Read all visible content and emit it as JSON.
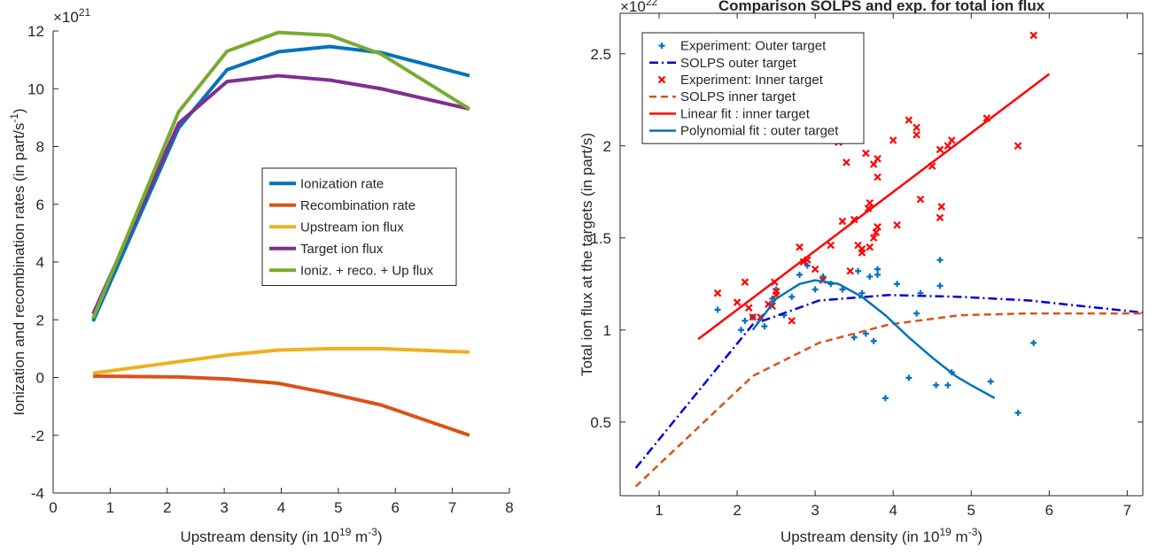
{
  "chart_data": [
    {
      "type": "line",
      "y_multiplier": [
        "×10",
        "21"
      ],
      "ylabel": [
        "Ionization and recombination rates (in part/s",
        "-1",
        ")"
      ],
      "xlabel": [
        "Upstream density (in 10",
        "19",
        " m",
        "-3",
        ")"
      ],
      "x": [
        0.7,
        2.2,
        3.05,
        3.95,
        4.85,
        5.75,
        7.3
      ],
      "series": [
        {
          "name": "Ionization rate",
          "color": "#0072bd",
          "values": [
            1.95,
            8.64,
            10.66,
            11.28,
            11.46,
            11.25,
            10.45
          ]
        },
        {
          "name": "Recombination rate",
          "color": "#d95319",
          "values": [
            0.05,
            0.02,
            -0.05,
            -0.2,
            -0.55,
            -0.95,
            -2.0
          ]
        },
        {
          "name": "Upstream ion flux",
          "color": "#edb120",
          "values": [
            0.15,
            0.55,
            0.78,
            0.95,
            1.0,
            1.0,
            0.88
          ]
        },
        {
          "name": "Target ion flux",
          "color": "#7e2f8e",
          "values": [
            2.2,
            8.8,
            10.25,
            10.45,
            10.3,
            10.0,
            9.3
          ]
        },
        {
          "name": "Ioniz. + reco. + Up flux",
          "color": "#77ac30",
          "values": [
            2.05,
            9.2,
            11.3,
            11.95,
            11.85,
            11.2,
            9.3
          ]
        }
      ],
      "xlim": [
        0,
        8
      ],
      "xticks": [
        0,
        1,
        2,
        3,
        4,
        5,
        6,
        7,
        8
      ],
      "ylim": [
        -4,
        12
      ],
      "yticks": [
        -4,
        -2,
        0,
        2,
        4,
        6,
        8,
        10,
        12
      ],
      "legend": "center",
      "box": false
    },
    {
      "type": "line",
      "title": "Comparison SOLPS and exp. for total ion flux",
      "y_multiplier": [
        "×10",
        "22"
      ],
      "ylabel": [
        "Total ion flux at the targets (in part/s)"
      ],
      "xlabel": [
        "Upstream density (in 10",
        "19",
        " m",
        "-3",
        ")"
      ],
      "series": [
        {
          "name": "Experiment: Outer target",
          "color": "#0072bd",
          "marker": "+",
          "x": [
            1.75,
            2.1,
            2.2,
            2.35,
            2.45,
            2.5,
            2.7,
            2.8,
            2.9,
            3.0,
            3.1,
            3.2,
            3.35,
            3.5,
            3.55,
            3.6,
            3.65,
            3.7,
            3.75,
            3.8,
            3.8,
            3.9,
            4.05,
            4.2,
            4.3,
            4.35,
            4.55,
            4.6,
            4.6,
            4.7,
            4.75,
            5.25,
            5.6,
            5.8,
            2.05,
            2.6
          ],
          "values": [
            1.11,
            1.05,
            1.07,
            1.02,
            1.17,
            1.22,
            1.18,
            1.3,
            1.35,
            1.22,
            1.29,
            1.25,
            1.22,
            0.96,
            1.32,
            1.2,
            0.98,
            1.29,
            0.94,
            1.33,
            1.3,
            0.63,
            1.25,
            0.74,
            1.09,
            1.2,
            0.7,
            1.38,
            1.24,
            0.7,
            0.77,
            0.72,
            0.55,
            0.93,
            1.0,
            1.08
          ]
        },
        {
          "name": "SOLPS outer target",
          "color": "#0000dd",
          "dash": "dashdot",
          "x": [
            0.7,
            2.2,
            3.05,
            3.95,
            4.85,
            5.75,
            7.3
          ],
          "values": [
            0.25,
            1.03,
            1.16,
            1.19,
            1.18,
            1.16,
            1.09
          ]
        },
        {
          "name": "Experiment: Inner target",
          "color": "#ff0000",
          "marker": "x",
          "x": [
            1.75,
            2.0,
            2.1,
            2.15,
            2.2,
            2.3,
            2.4,
            2.45,
            2.5,
            2.48,
            2.5,
            2.7,
            2.8,
            2.85,
            2.9,
            3.0,
            3.1,
            3.2,
            3.35,
            3.4,
            3.45,
            3.5,
            3.55,
            3.6,
            3.65,
            3.7,
            3.68,
            3.75,
            3.75,
            3.8,
            3.8,
            3.78,
            3.7,
            3.6,
            4.0,
            4.05,
            4.2,
            4.3,
            4.3,
            4.35,
            4.5,
            4.6,
            4.62,
            4.6,
            4.7,
            4.75,
            5.2,
            5.6,
            5.8,
            3.3,
            3.8
          ],
          "values": [
            1.2,
            1.15,
            1.26,
            1.12,
            1.07,
            1.07,
            1.14,
            1.13,
            1.21,
            1.26,
            1.19,
            1.05,
            1.45,
            1.37,
            1.38,
            1.33,
            1.27,
            1.46,
            1.59,
            1.91,
            1.32,
            1.6,
            1.46,
            1.44,
            1.96,
            1.69,
            1.66,
            1.5,
            1.9,
            1.93,
            1.56,
            1.53,
            1.45,
            1.42,
            2.03,
            1.57,
            2.14,
            2.1,
            2.06,
            1.71,
            1.89,
            1.98,
            1.67,
            1.61,
            2.0,
            2.03,
            2.15,
            2.0,
            2.6,
            2.02,
            1.83
          ]
        },
        {
          "name": "SOLPS inner target",
          "color": "#d95319",
          "dash": "dash",
          "x": [
            0.7,
            2.2,
            3.05,
            3.95,
            4.85,
            5.75,
            7.3
          ],
          "values": [
            0.15,
            0.75,
            0.93,
            1.03,
            1.08,
            1.09,
            1.09
          ]
        },
        {
          "name": "Linear fit : inner target",
          "color": "#ff0000",
          "x": [
            1.5,
            6
          ],
          "values": [
            0.95,
            2.39
          ]
        },
        {
          "name": "Polynomial fit : outer target",
          "color": "#0072bd",
          "x": [
            2.2,
            2.5,
            2.8,
            3.0,
            3.3,
            3.6,
            3.9,
            4.2,
            4.5,
            4.8,
            5.0,
            5.3
          ],
          "values": [
            1.0,
            1.17,
            1.25,
            1.27,
            1.25,
            1.18,
            1.08,
            0.96,
            0.85,
            0.75,
            0.7,
            0.63
          ]
        }
      ],
      "xlim": [
        0.5,
        7.2
      ],
      "xticks": [
        1,
        2,
        3,
        4,
        5,
        6,
        7
      ],
      "ylim": [
        0.1,
        2.72
      ],
      "yticks": [
        0.5,
        1,
        1.5,
        2,
        2.5
      ],
      "legend": "northwest",
      "box": true
    }
  ]
}
